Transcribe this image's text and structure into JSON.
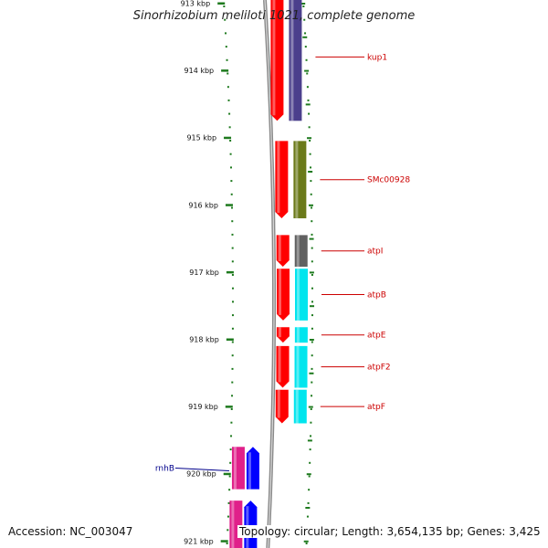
{
  "title": "Sinorhizobium meliloti 1021, complete genome",
  "accession": "Accession: NC_003047",
  "topology": "Topology: circular; Length: 3,654,135 bp; Genes: 3,425",
  "colors": {
    "background": "#ffffff",
    "backbone": "#8a8a8a",
    "tick": "#1e7a1e",
    "cds": "#ff0000",
    "label_forward": "#cc0000",
    "label_reverse": "#00008b"
  },
  "ticks": [
    {
      "kbp": 913,
      "label": "913 kbp"
    },
    {
      "kbp": 914,
      "label": "914 kbp"
    },
    {
      "kbp": 915,
      "label": "915 kbp"
    },
    {
      "kbp": 916,
      "label": "916 kbp"
    },
    {
      "kbp": 917,
      "label": "917 kbp"
    },
    {
      "kbp": 918,
      "label": "918 kbp"
    },
    {
      "kbp": 919,
      "label": "919 kbp"
    },
    {
      "kbp": 920,
      "label": "920 kbp"
    },
    {
      "kbp": 921,
      "label": "921 kbp"
    }
  ],
  "genes": [
    {
      "name": "kup1",
      "start_kbp": 912.85,
      "end_kbp": 914.75,
      "strand": "forward",
      "color": "#4b3f8c",
      "has_label": true
    },
    {
      "name": "SMc00928",
      "start_kbp": 915.05,
      "end_kbp": 916.2,
      "strand": "forward",
      "color": "#6b7a1a",
      "has_label": true
    },
    {
      "name": "atpI",
      "start_kbp": 916.45,
      "end_kbp": 916.92,
      "strand": "forward",
      "color": "#606060",
      "has_label": true
    },
    {
      "name": "atpB",
      "start_kbp": 916.95,
      "end_kbp": 917.72,
      "strand": "forward",
      "color": "#00e5ee",
      "has_label": true
    },
    {
      "name": "atpE",
      "start_kbp": 917.82,
      "end_kbp": 918.05,
      "strand": "forward",
      "color": "#00e5ee",
      "has_label": true
    },
    {
      "name": "atpF2",
      "start_kbp": 918.1,
      "end_kbp": 918.72,
      "strand": "forward",
      "color": "#00e5ee",
      "has_label": true
    },
    {
      "name": "atpF",
      "start_kbp": 918.75,
      "end_kbp": 919.25,
      "strand": "forward",
      "color": "#00e5ee",
      "has_label": true
    },
    {
      "name": "rnhB",
      "start_kbp": 919.6,
      "end_kbp": 920.23,
      "strand": "reverse",
      "color": "#0000ff",
      "has_label": true
    },
    {
      "name": "",
      "start_kbp": 920.4,
      "end_kbp": 921.2,
      "strand": "reverse",
      "color": "#0000ff",
      "has_label": false
    }
  ]
}
